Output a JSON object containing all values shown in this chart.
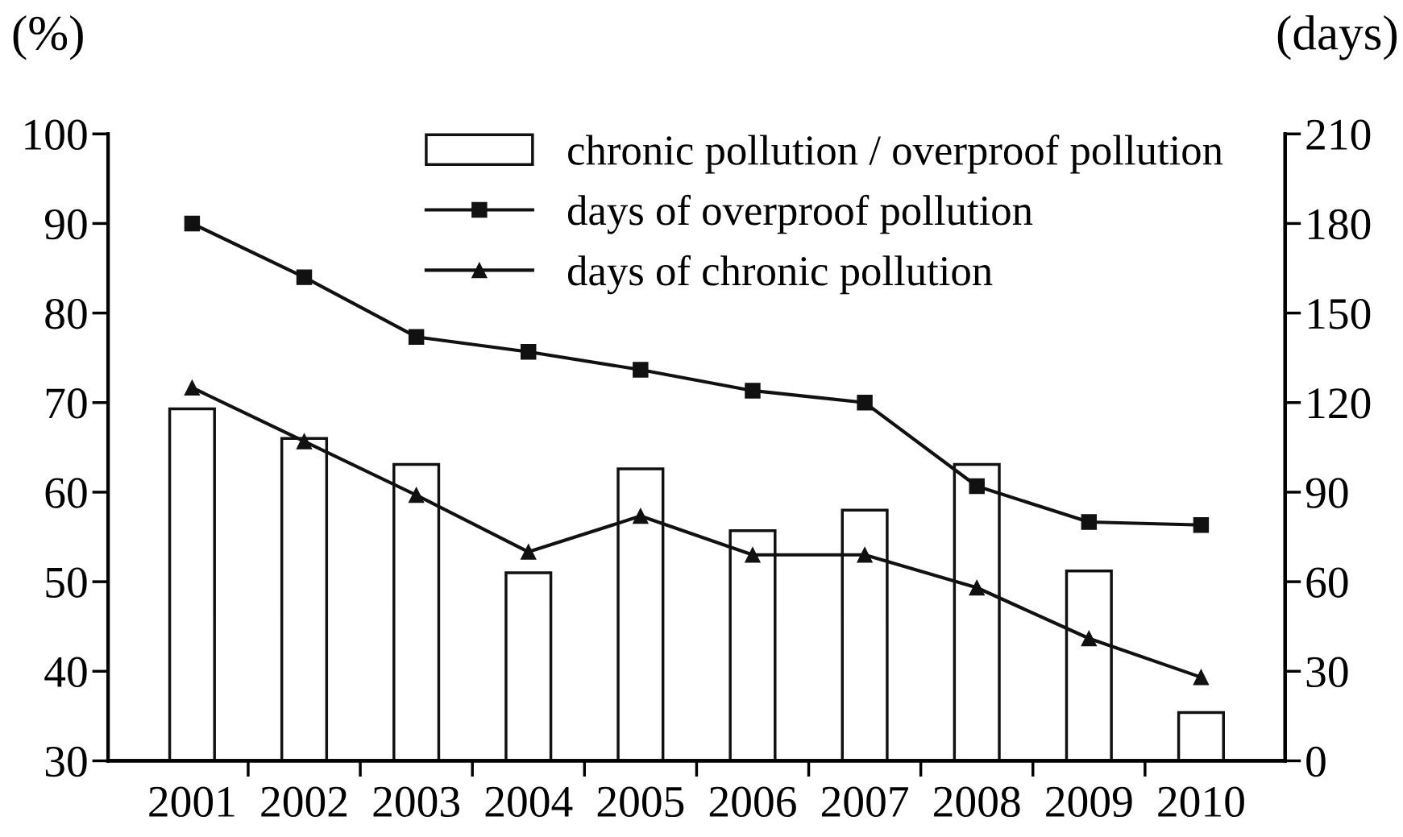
{
  "chart_data": {
    "type": "bar",
    "ylabel": "(%)",
    "y2label": "(days)",
    "categories": [
      "2001",
      "2002",
      "2003",
      "2004",
      "2005",
      "2006",
      "2007",
      "2008",
      "2009",
      "2010"
    ],
    "series": [
      {
        "name": "chronic pollution / overproof pollution",
        "color": "#ffffff",
        "values": [
          69.3,
          66,
          63.1,
          51,
          62.6,
          55.7,
          58,
          63.1,
          51.2,
          35.4
        ]
      },
      {
        "name": "days of overproof pollution",
        "type": "line",
        "axis": "y2",
        "color": "#111111",
        "marker": "square",
        "values": [
          180,
          162,
          142,
          137,
          131,
          124,
          120,
          92,
          80,
          79
        ]
      },
      {
        "name": "days of chronic pollution",
        "type": "line",
        "axis": "y2",
        "color": "#111111",
        "marker": "triangle",
        "values": [
          125,
          107,
          89,
          70,
          82,
          69,
          69,
          58,
          41,
          28
        ]
      }
    ],
    "ylim": [
      30,
      100
    ],
    "yticks": [
      30,
      40,
      50,
      60,
      70,
      80,
      90,
      100
    ],
    "y2lim": [
      0,
      210
    ],
    "y2ticks": [
      0,
      30,
      60,
      90,
      120,
      150,
      180,
      210
    ],
    "grid": false,
    "legend": "top right",
    "line_style": "solid"
  }
}
